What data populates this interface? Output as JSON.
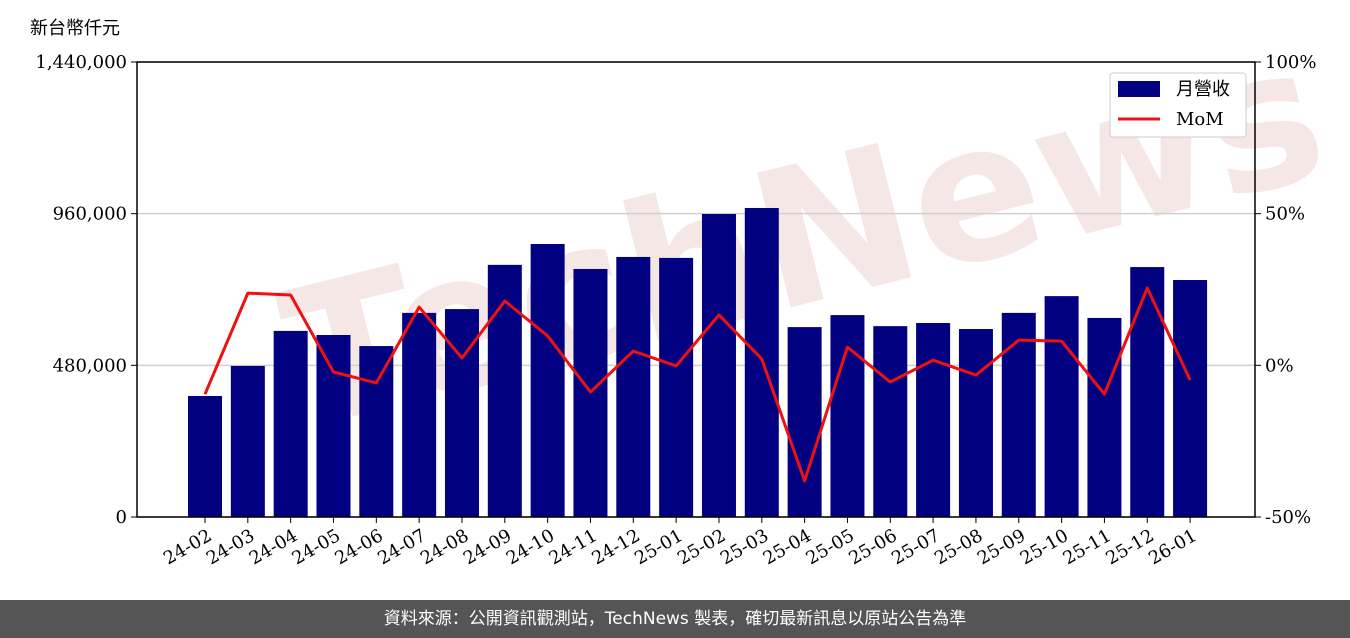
{
  "chart_data": {
    "type": "bar",
    "y_label": "新台幣仟元",
    "watermark": "TechNews",
    "categories": [
      "24-02",
      "24-03",
      "24-04",
      "24-05",
      "24-06",
      "24-07",
      "24-08",
      "24-09",
      "24-10",
      "24-11",
      "24-12",
      "25-01",
      "25-02",
      "25-03",
      "25-04",
      "25-05",
      "25-06",
      "25-07",
      "25-08",
      "25-09",
      "25-10",
      "25-11",
      "25-12",
      "26-01"
    ],
    "series": [
      {
        "name": "月營收",
        "type": "bar",
        "color": "#000080",
        "values": [
          383000,
          478000,
          589000,
          576000,
          541000,
          646000,
          658000,
          798000,
          864000,
          785000,
          823000,
          820000,
          959000,
          978000,
          601000,
          639000,
          604000,
          614000,
          595000,
          646000,
          699000,
          630000,
          791000,
          750000
        ]
      },
      {
        "name": "MoM",
        "type": "line",
        "axis": "y2",
        "color": "#ee1111",
        "values": [
          -9.5,
          23.8,
          23.2,
          -2.2,
          -5.8,
          19.2,
          2.4,
          21.2,
          9.7,
          -8.8,
          4.7,
          -0.2,
          16.6,
          2.1,
          -38.1,
          6.0,
          -5.5,
          1.7,
          -3.2,
          8.3,
          8.0,
          -9.5,
          25.5,
          -4.8
        ]
      }
    ],
    "ylim": [
      0,
      1440000
    ],
    "yticks": [
      0,
      {
        "value": 480000,
        "label": "480,000"
      },
      {
        "value": 960000,
        "label": "960,000"
      },
      {
        "value": 1440000,
        "label": "1,440,000"
      }
    ],
    "y2lim": [
      -50,
      100
    ],
    "y2ticks": [
      {
        "value": -50,
        "label": "-50%"
      },
      {
        "value": 0,
        "label": "0%"
      },
      {
        "value": 50,
        "label": "50%"
      },
      {
        "value": 100,
        "label": "100%"
      }
    ],
    "grid": true,
    "legend": "upper right"
  },
  "footer": "資料來源：公開資訊觀測站，TechNews 製表，確切最新訊息以原站公告為準"
}
